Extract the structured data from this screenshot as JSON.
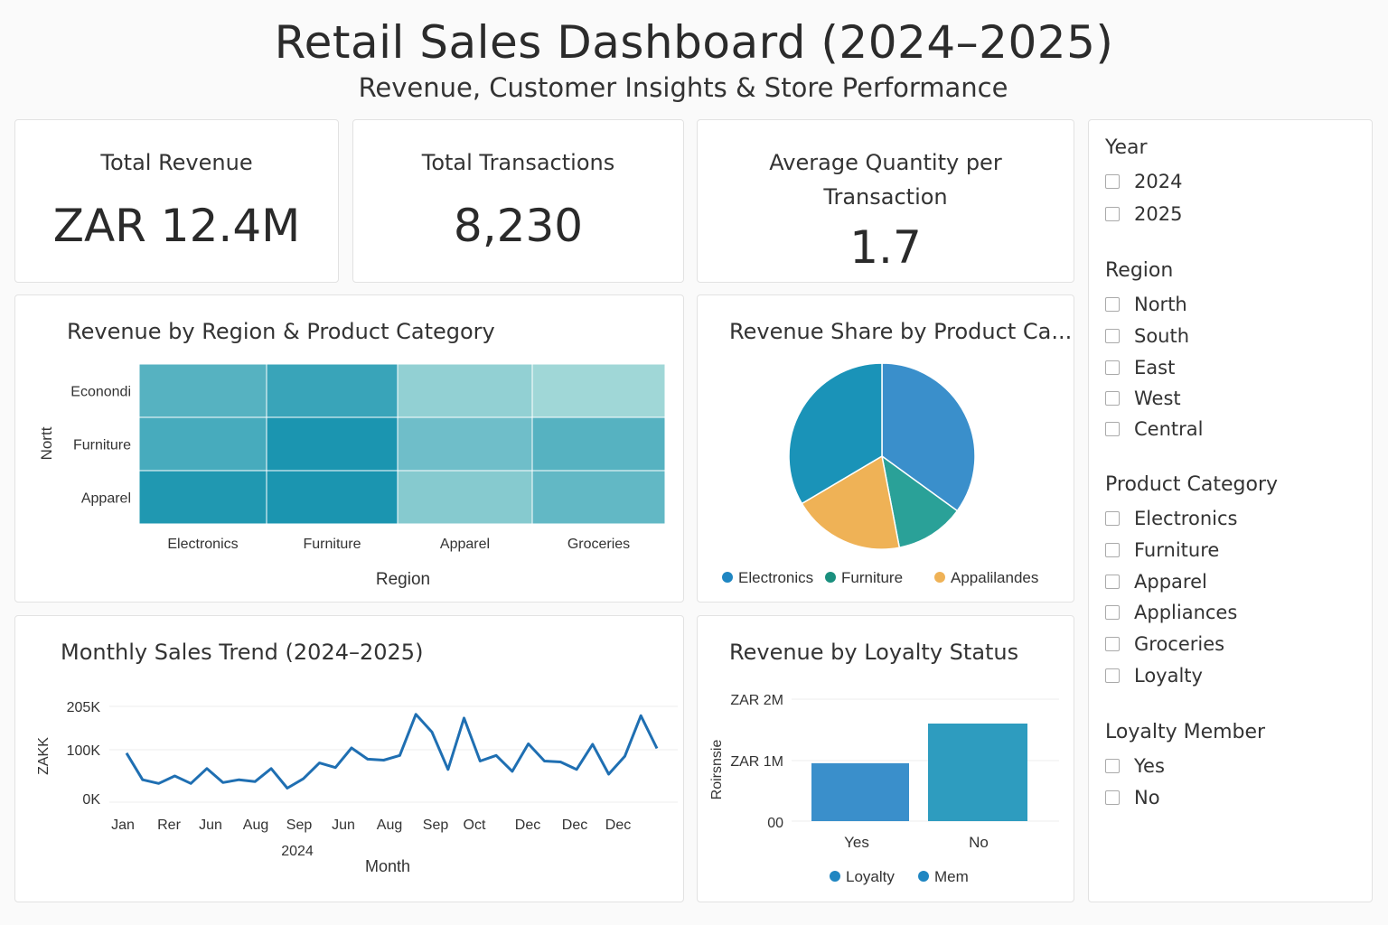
{
  "header": {
    "title": "Retail Sales Dashboard (2024–2025)",
    "subtitle": "Revenue, Customer Insights & Store Performance"
  },
  "kpis": {
    "revenue": {
      "label": "Total Revenue",
      "value": "ZAR 12.4M"
    },
    "transactions": {
      "label": "Total Transactions",
      "value": "8,230"
    },
    "avg_qty": {
      "label_line1": "Average Quantity per",
      "label_line2": "Transaction",
      "value": "1.7"
    }
  },
  "heatmap": {
    "title": "Revenue by Region & Product Category",
    "xlabel": "Region",
    "ylabel": "Nortt",
    "columns": [
      "Electronics",
      "Furniture",
      "Apparel",
      "Groceries"
    ],
    "rows": [
      "Econondi",
      "Furniture",
      "Apparel"
    ],
    "intensity": [
      [
        0.62,
        0.78,
        0.28,
        0.2
      ],
      [
        0.7,
        0.95,
        0.48,
        0.62
      ],
      [
        0.92,
        0.95,
        0.35,
        0.55
      ]
    ],
    "colors": {
      "low": "#c4e8e2",
      "high": "#1291ad"
    }
  },
  "pie": {
    "title": "Revenue Share by Product Ca...",
    "slices": [
      {
        "label": "Electronics",
        "value": 0.35,
        "color": "#3a8fcb",
        "in_legend": false
      },
      {
        "label": "Furniture",
        "value": 0.12,
        "color": "#2aa198",
        "in_legend": true
      },
      {
        "label": "Appalilandes",
        "value": 0.195,
        "color": "#efb256",
        "in_legend": true
      },
      {
        "label": "Electronics",
        "value": 0.335,
        "color": "#1a93b8",
        "in_legend": true
      }
    ],
    "legend": [
      {
        "label": "Electronics",
        "color": "#1f86c2"
      },
      {
        "label": "Furniture",
        "color": "#1a8f7e"
      },
      {
        "label": "Appalilandes",
        "color": "#efb256"
      }
    ]
  },
  "trend": {
    "title": "Monthly Sales Trend (2024–2025)",
    "ylabel": "ZAKK",
    "xlabel": "Month",
    "year_label": "2024",
    "y_ticks": [
      "205K",
      "100K",
      "0K"
    ],
    "x_ticks": [
      "Jan",
      "Rer",
      "Jun",
      "Aug",
      "Sep",
      "Jun",
      "Aug",
      "Sep",
      "Oct",
      "Dec",
      "Dec",
      "Dec"
    ],
    "line_color": "#1f6fb2",
    "chart_data": {
      "type": "line",
      "ylim": [
        0,
        205000
      ],
      "values": [
        105000,
        48000,
        40000,
        56000,
        40000,
        72000,
        42000,
        48000,
        44000,
        72000,
        30000,
        50000,
        84000,
        74000,
        116000,
        92000,
        90000,
        100000,
        188000,
        150000,
        70000,
        180000,
        88000,
        100000,
        66000,
        125000,
        88000,
        86000,
        70000,
        124000,
        60000,
        98000,
        185000,
        115000
      ]
    }
  },
  "loyalty": {
    "title": "Revenue by Loyalty Status",
    "ylabel": "Roirsnsie",
    "y_ticks": [
      "ZAR 2M",
      "ZAR 1M",
      "00"
    ],
    "categories": [
      "Yes",
      "No"
    ],
    "legend": [
      {
        "label": "Loyalty",
        "color": "#1f86c2"
      },
      {
        "label": "Mem",
        "color": "#1f86c2"
      }
    ],
    "chart_data": {
      "type": "bar",
      "categories": [
        "Yes",
        "No"
      ],
      "values": [
        0.95,
        1.6
      ],
      "ylim": [
        0,
        2
      ],
      "unit": "ZAR M",
      "colors": [
        "#3a8fcb",
        "#2e9cbf"
      ]
    }
  },
  "filters": {
    "year": {
      "title": "Year",
      "items": [
        "2024",
        "2025"
      ]
    },
    "region": {
      "title": "Region",
      "items": [
        "North",
        "South",
        "East",
        "West",
        "Central"
      ]
    },
    "category": {
      "title": "Product Category",
      "items": [
        "Electronics",
        "Furniture",
        "Apparel",
        "Appliances",
        "Groceries",
        "Loyalty"
      ]
    },
    "loyalty": {
      "title": "Loyalty Member",
      "items": [
        "Yes",
        "No"
      ]
    }
  }
}
